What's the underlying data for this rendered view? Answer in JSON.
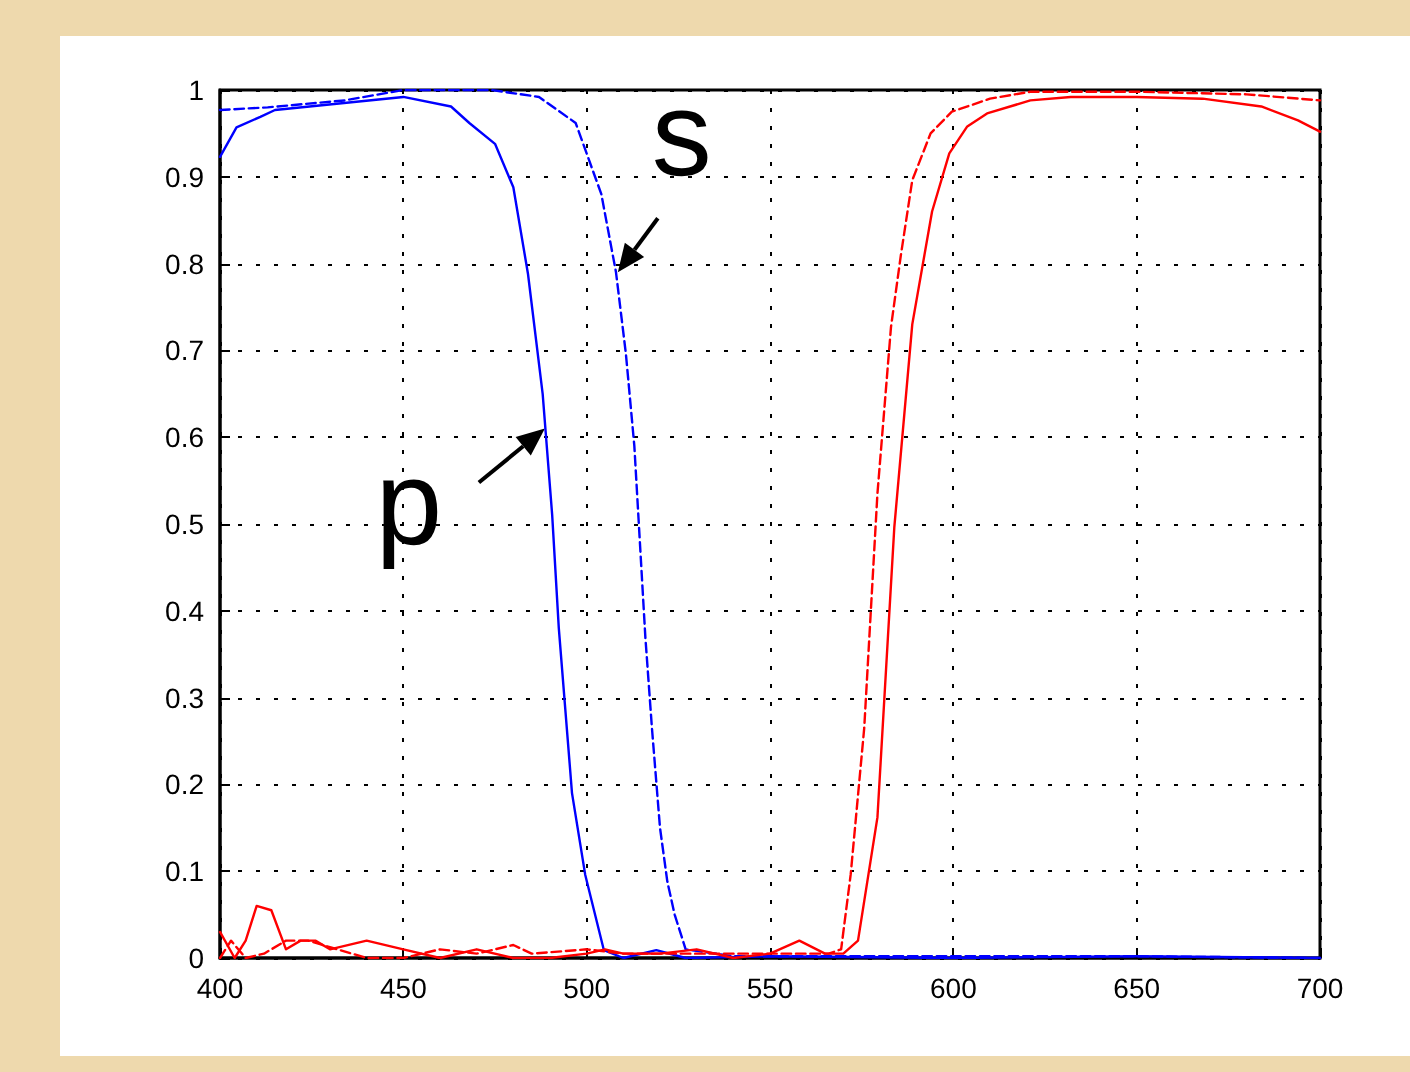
{
  "chart_data": {
    "type": "line",
    "xlim": [
      400,
      700
    ],
    "ylim": [
      0,
      1
    ],
    "xticks": [
      400,
      450,
      500,
      550,
      600,
      650,
      700
    ],
    "yticks": [
      0,
      0.1,
      0.2,
      0.3,
      0.4,
      0.5,
      0.6,
      0.7,
      0.8,
      0.9,
      1
    ],
    "grid": true,
    "marker": "none",
    "annotations": [
      {
        "text": "p",
        "x": 488.6,
        "y": 0.61
      },
      {
        "text": "s",
        "x": 508.5,
        "y": 0.79
      }
    ],
    "series": [
      {
        "color": "#0000ff",
        "line_style": "solid",
        "x": [
          400,
          404.5,
          411,
          415,
          450,
          463,
          468,
          475,
          480,
          484,
          488,
          490.6,
          492.4,
          496,
          499.6,
          504.7,
          510,
          519,
          527,
          550,
          600,
          650,
          700
        ],
        "values": [
          0.923,
          0.957,
          0.969,
          0.977,
          0.992,
          0.981,
          0.962,
          0.938,
          0.888,
          0.788,
          0.65,
          0.51,
          0.38,
          0.19,
          0.096,
          0.009,
          0,
          0.009,
          0,
          0.002,
          0,
          0.002,
          0
        ]
      },
      {
        "color": "#0000ff",
        "line_style": "dashed",
        "x": [
          400,
          413,
          434,
          450,
          474,
          487,
          497,
          504,
          508,
          510.7,
          513,
          514.5,
          516,
          517.8,
          520,
          522,
          524,
          527,
          540,
          600,
          650,
          700
        ],
        "values": [
          0.977,
          0.98,
          0.988,
          1,
          1,
          0.992,
          0.962,
          0.88,
          0.79,
          0.696,
          0.59,
          0.48,
          0.37,
          0.265,
          0.15,
          0.088,
          0.05,
          0.01,
          0.002,
          0.002,
          0.002,
          0
        ]
      },
      {
        "color": "#ff0000",
        "line_style": "solid",
        "x": [
          400,
          404,
          407,
          410,
          414,
          418,
          422,
          426,
          430,
          440,
          450,
          460,
          470,
          480,
          490,
          500,
          505,
          510,
          520,
          530,
          540,
          550,
          558,
          565,
          570,
          574,
          579.3,
          583.9,
          588.8,
          594.2,
          598.9,
          603.8,
          609.2,
          621,
          632,
          650,
          668,
          684,
          694,
          700
        ],
        "values": [
          0.03,
          0,
          0.02,
          0.06,
          0.055,
          0.01,
          0.02,
          0.02,
          0.01,
          0.02,
          0.01,
          0,
          0.01,
          0,
          0,
          0.005,
          0.01,
          0.005,
          0.005,
          0.01,
          0,
          0.005,
          0.02,
          0.005,
          0.005,
          0.02,
          0.162,
          0.496,
          0.73,
          0.86,
          0.927,
          0.958,
          0.973,
          0.988,
          0.992,
          0.992,
          0.99,
          0.981,
          0.965,
          0.952
        ]
      },
      {
        "color": "#ff0000",
        "line_style": "dashed",
        "x": [
          400,
          403,
          407,
          412,
          418,
          424,
          428,
          432,
          440,
          450,
          460,
          470,
          480,
          485,
          500,
          510,
          530,
          545,
          560,
          566,
          569.4,
          572,
          575.7,
          579.3,
          583,
          585.7,
          588.8,
          593.8,
          599.6,
          610,
          621,
          650,
          680,
          700
        ],
        "values": [
          0,
          0.02,
          0,
          0.005,
          0.02,
          0.02,
          0.015,
          0.01,
          0,
          0,
          0.01,
          0.005,
          0.015,
          0.005,
          0.01,
          0.005,
          0.005,
          0.005,
          0.005,
          0.005,
          0.01,
          0.096,
          0.265,
          0.535,
          0.727,
          0.81,
          0.896,
          0.95,
          0.975,
          0.99,
          0.998,
          0.998,
          0.995,
          0.988
        ]
      }
    ]
  }
}
